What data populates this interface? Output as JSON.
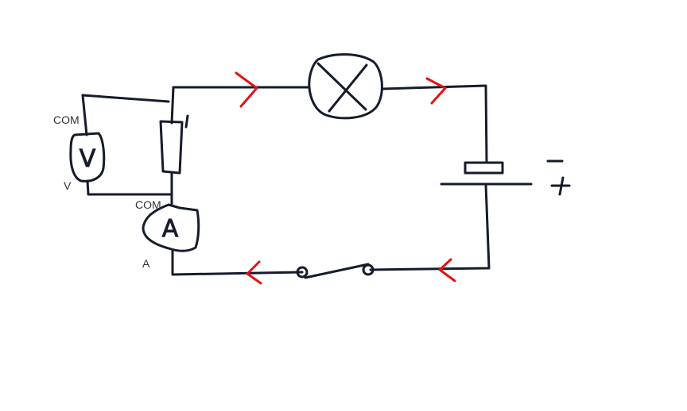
{
  "labels": {
    "voltmeter_com": "COM",
    "voltmeter_v": "V",
    "ammeter_com": "COM",
    "ammeter_a": "A"
  },
  "symbols": {
    "voltmeter_letter": "V",
    "ammeter_letter": "A",
    "battery_negative": "−",
    "battery_positive": "+"
  },
  "colors": {
    "wire": "#161c2c",
    "current_arrows": "#e01414"
  }
}
